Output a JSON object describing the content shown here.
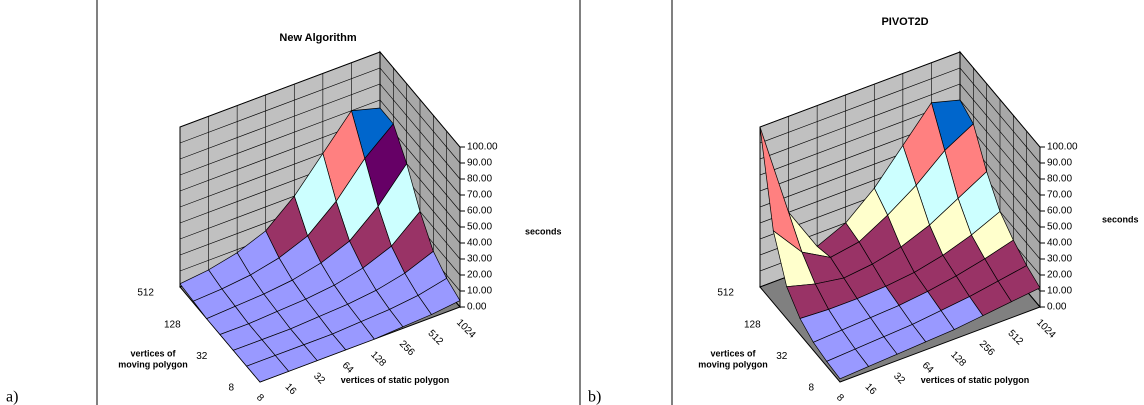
{
  "chart_data": [
    {
      "type": "surface",
      "panel_label": "a)",
      "title": "New Algorithm",
      "x_label": "vertices of static polygon",
      "y_label": [
        "vertices of",
        "moving polygon"
      ],
      "z_label": "seconds",
      "x": [
        8,
        16,
        32,
        64,
        128,
        256,
        512,
        1024
      ],
      "y": [
        8,
        null,
        32,
        null,
        128,
        null,
        512
      ],
      "values": [
        [
          0,
          0,
          0,
          0,
          0,
          1,
          2,
          4
        ],
        [
          0,
          0,
          0,
          0,
          1,
          2,
          4,
          8
        ],
        [
          0,
          0,
          0,
          1,
          2,
          4,
          8,
          15
        ],
        [
          0,
          0,
          1,
          2,
          4,
          8,
          15,
          30
        ],
        [
          0,
          1,
          2,
          4,
          8,
          15,
          30,
          50
        ],
        [
          1,
          2,
          4,
          8,
          15,
          30,
          50,
          65
        ],
        [
          2,
          4,
          8,
          15,
          30,
          50,
          70,
          65
        ]
      ],
      "zlim": [
        0,
        100
      ],
      "zticks": [
        {
          "value": 0,
          "label": "0.00"
        },
        {
          "value": 10,
          "label": "10.00"
        },
        {
          "value": 20,
          "label": "20.00"
        },
        {
          "value": 30,
          "label": "30.00"
        },
        {
          "value": 40,
          "label": "40.00"
        },
        {
          "value": 50,
          "label": "50.00"
        },
        {
          "value": 60,
          "label": "60.00"
        },
        {
          "value": 70,
          "label": "70.00"
        },
        {
          "value": 80,
          "label": "80.00"
        },
        {
          "value": 90,
          "label": "90.00"
        },
        {
          "value": 100,
          "label": "100.00"
        }
      ],
      "band_colors": [
        "#9999ff",
        "#993366",
        "#ffffcc",
        "#ccffff",
        "#660066",
        "#ff8080",
        "#0066cc",
        "#ccccff",
        "#000080",
        "#ff00ff"
      ]
    },
    {
      "type": "surface",
      "panel_label": "b)",
      "title": "PIVOT2D",
      "x_label": "vertices of static polygon",
      "y_label": [
        "vertices of",
        "moving polygon"
      ],
      "z_label": "seconds",
      "x": [
        8,
        16,
        32,
        64,
        128,
        256,
        512,
        1024
      ],
      "y": [
        8,
        null,
        32,
        null,
        128,
        null,
        512
      ],
      "values": [
        [
          2,
          3,
          4,
          5,
          6,
          8,
          10,
          12
        ],
        [
          3,
          4,
          5,
          6,
          8,
          10,
          13,
          16
        ],
        [
          5,
          6,
          7,
          8,
          10,
          13,
          17,
          22
        ],
        [
          10,
          9,
          9,
          10,
          12,
          16,
          22,
          30
        ],
        [
          20,
          15,
          12,
          14,
          18,
          25,
          35,
          45
        ],
        [
          45,
          25,
          15,
          18,
          28,
          40,
          55,
          65
        ],
        [
          100,
          40,
          12,
          20,
          35,
          55,
          75,
          70
        ]
      ],
      "zlim": [
        0,
        100
      ],
      "zticks": [
        {
          "value": 0,
          "label": "0.00"
        },
        {
          "value": 10,
          "label": "10.00"
        },
        {
          "value": 20,
          "label": "20.00"
        },
        {
          "value": 30,
          "label": "30.00"
        },
        {
          "value": 40,
          "label": "40.00"
        },
        {
          "value": 50,
          "label": "50.00"
        },
        {
          "value": 60,
          "label": "60.00"
        },
        {
          "value": 70,
          "label": "70.00"
        },
        {
          "value": 80,
          "label": "80.00"
        },
        {
          "value": 90,
          "label": "90.00"
        },
        {
          "value": 100,
          "label": "100.00"
        }
      ],
      "band_colors": [
        "#9999ff",
        "#993366",
        "#ffffcc",
        "#ccffff",
        "#660066",
        "#ff8080",
        "#0066cc",
        "#ccccff",
        "#000080",
        "#ff00ff"
      ]
    }
  ]
}
